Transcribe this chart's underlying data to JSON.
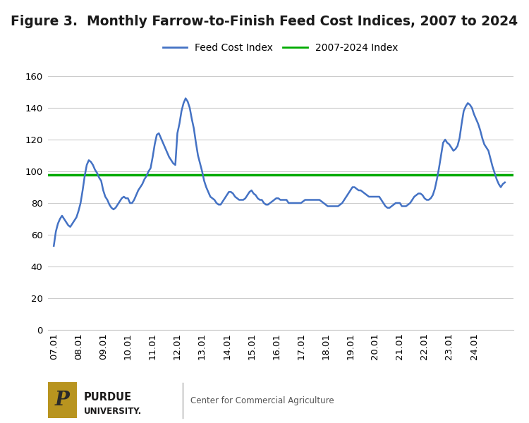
{
  "title": "Figure 3.  Monthly Farrow-to-Finish Feed Cost Indices, 2007 to 2024",
  "legend_labels": [
    "Feed Cost Index",
    "2007-2024 Index"
  ],
  "feed_color": "#4472C4",
  "avg_color": "#00AA00",
  "avg_value": 98.0,
  "ylim": [
    0,
    160
  ],
  "yticks": [
    0,
    20,
    40,
    60,
    80,
    100,
    120,
    140,
    160
  ],
  "xtick_labels": [
    "07.01",
    "08.01",
    "09.01",
    "10.01",
    "11.01",
    "12.01",
    "13.01",
    "14.01",
    "15.01",
    "16.01",
    "17.01",
    "18.01",
    "19.01",
    "20.01",
    "21.01",
    "22.01",
    "23.01",
    "24.01"
  ],
  "background_color": "#FFFFFF",
  "grid_color": "#CCCCCC",
  "title_fontsize": 13.5,
  "legend_fontsize": 10,
  "feed_cost_index": [
    53,
    62,
    67,
    70,
    72,
    70,
    68,
    66,
    65,
    67,
    69,
    71,
    75,
    80,
    88,
    97,
    104,
    107,
    106,
    104,
    101,
    99,
    96,
    94,
    88,
    84,
    82,
    79,
    77,
    76,
    77,
    79,
    81,
    83,
    84,
    83,
    83,
    80,
    80,
    82,
    85,
    88,
    90,
    92,
    95,
    97,
    100,
    102,
    109,
    117,
    123,
    124,
    121,
    118,
    115,
    112,
    109,
    107,
    105,
    104,
    124,
    130,
    138,
    143,
    146,
    144,
    140,
    133,
    127,
    118,
    110,
    105,
    100,
    94,
    90,
    87,
    84,
    83,
    82,
    80,
    79,
    79,
    81,
    83,
    85,
    87,
    87,
    86,
    84,
    83,
    82,
    82,
    82,
    83,
    85,
    87,
    88,
    86,
    85,
    83,
    82,
    82,
    80,
    79,
    79,
    80,
    81,
    82,
    83,
    83,
    82,
    82,
    82,
    82,
    80,
    80,
    80,
    80,
    80,
    80,
    80,
    81,
    82,
    82,
    82,
    82,
    82,
    82,
    82,
    82,
    81,
    80,
    79,
    78,
    78,
    78,
    78,
    78,
    78,
    79,
    80,
    82,
    84,
    86,
    88,
    90,
    90,
    89,
    88,
    88,
    87,
    86,
    85,
    84,
    84,
    84,
    84,
    84,
    84,
    82,
    80,
    78,
    77,
    77,
    78,
    79,
    80,
    80,
    80,
    78,
    78,
    78,
    79,
    80,
    82,
    84,
    85,
    86,
    86,
    85,
    83,
    82,
    82,
    83,
    85,
    89,
    95,
    102,
    110,
    118,
    120,
    118,
    117,
    115,
    113,
    114,
    116,
    121,
    130,
    138,
    141,
    143,
    142,
    140,
    136,
    133,
    130,
    126,
    121,
    117,
    115,
    113,
    108,
    103,
    99,
    95,
    92,
    90,
    92,
    93
  ],
  "footer_text": "Center for Commercial Agriculture",
  "line_width": 1.8,
  "purdue_gold": "#B8941F",
  "purdue_dark": "#1C1B1B",
  "tick_fontsize": 9.5
}
